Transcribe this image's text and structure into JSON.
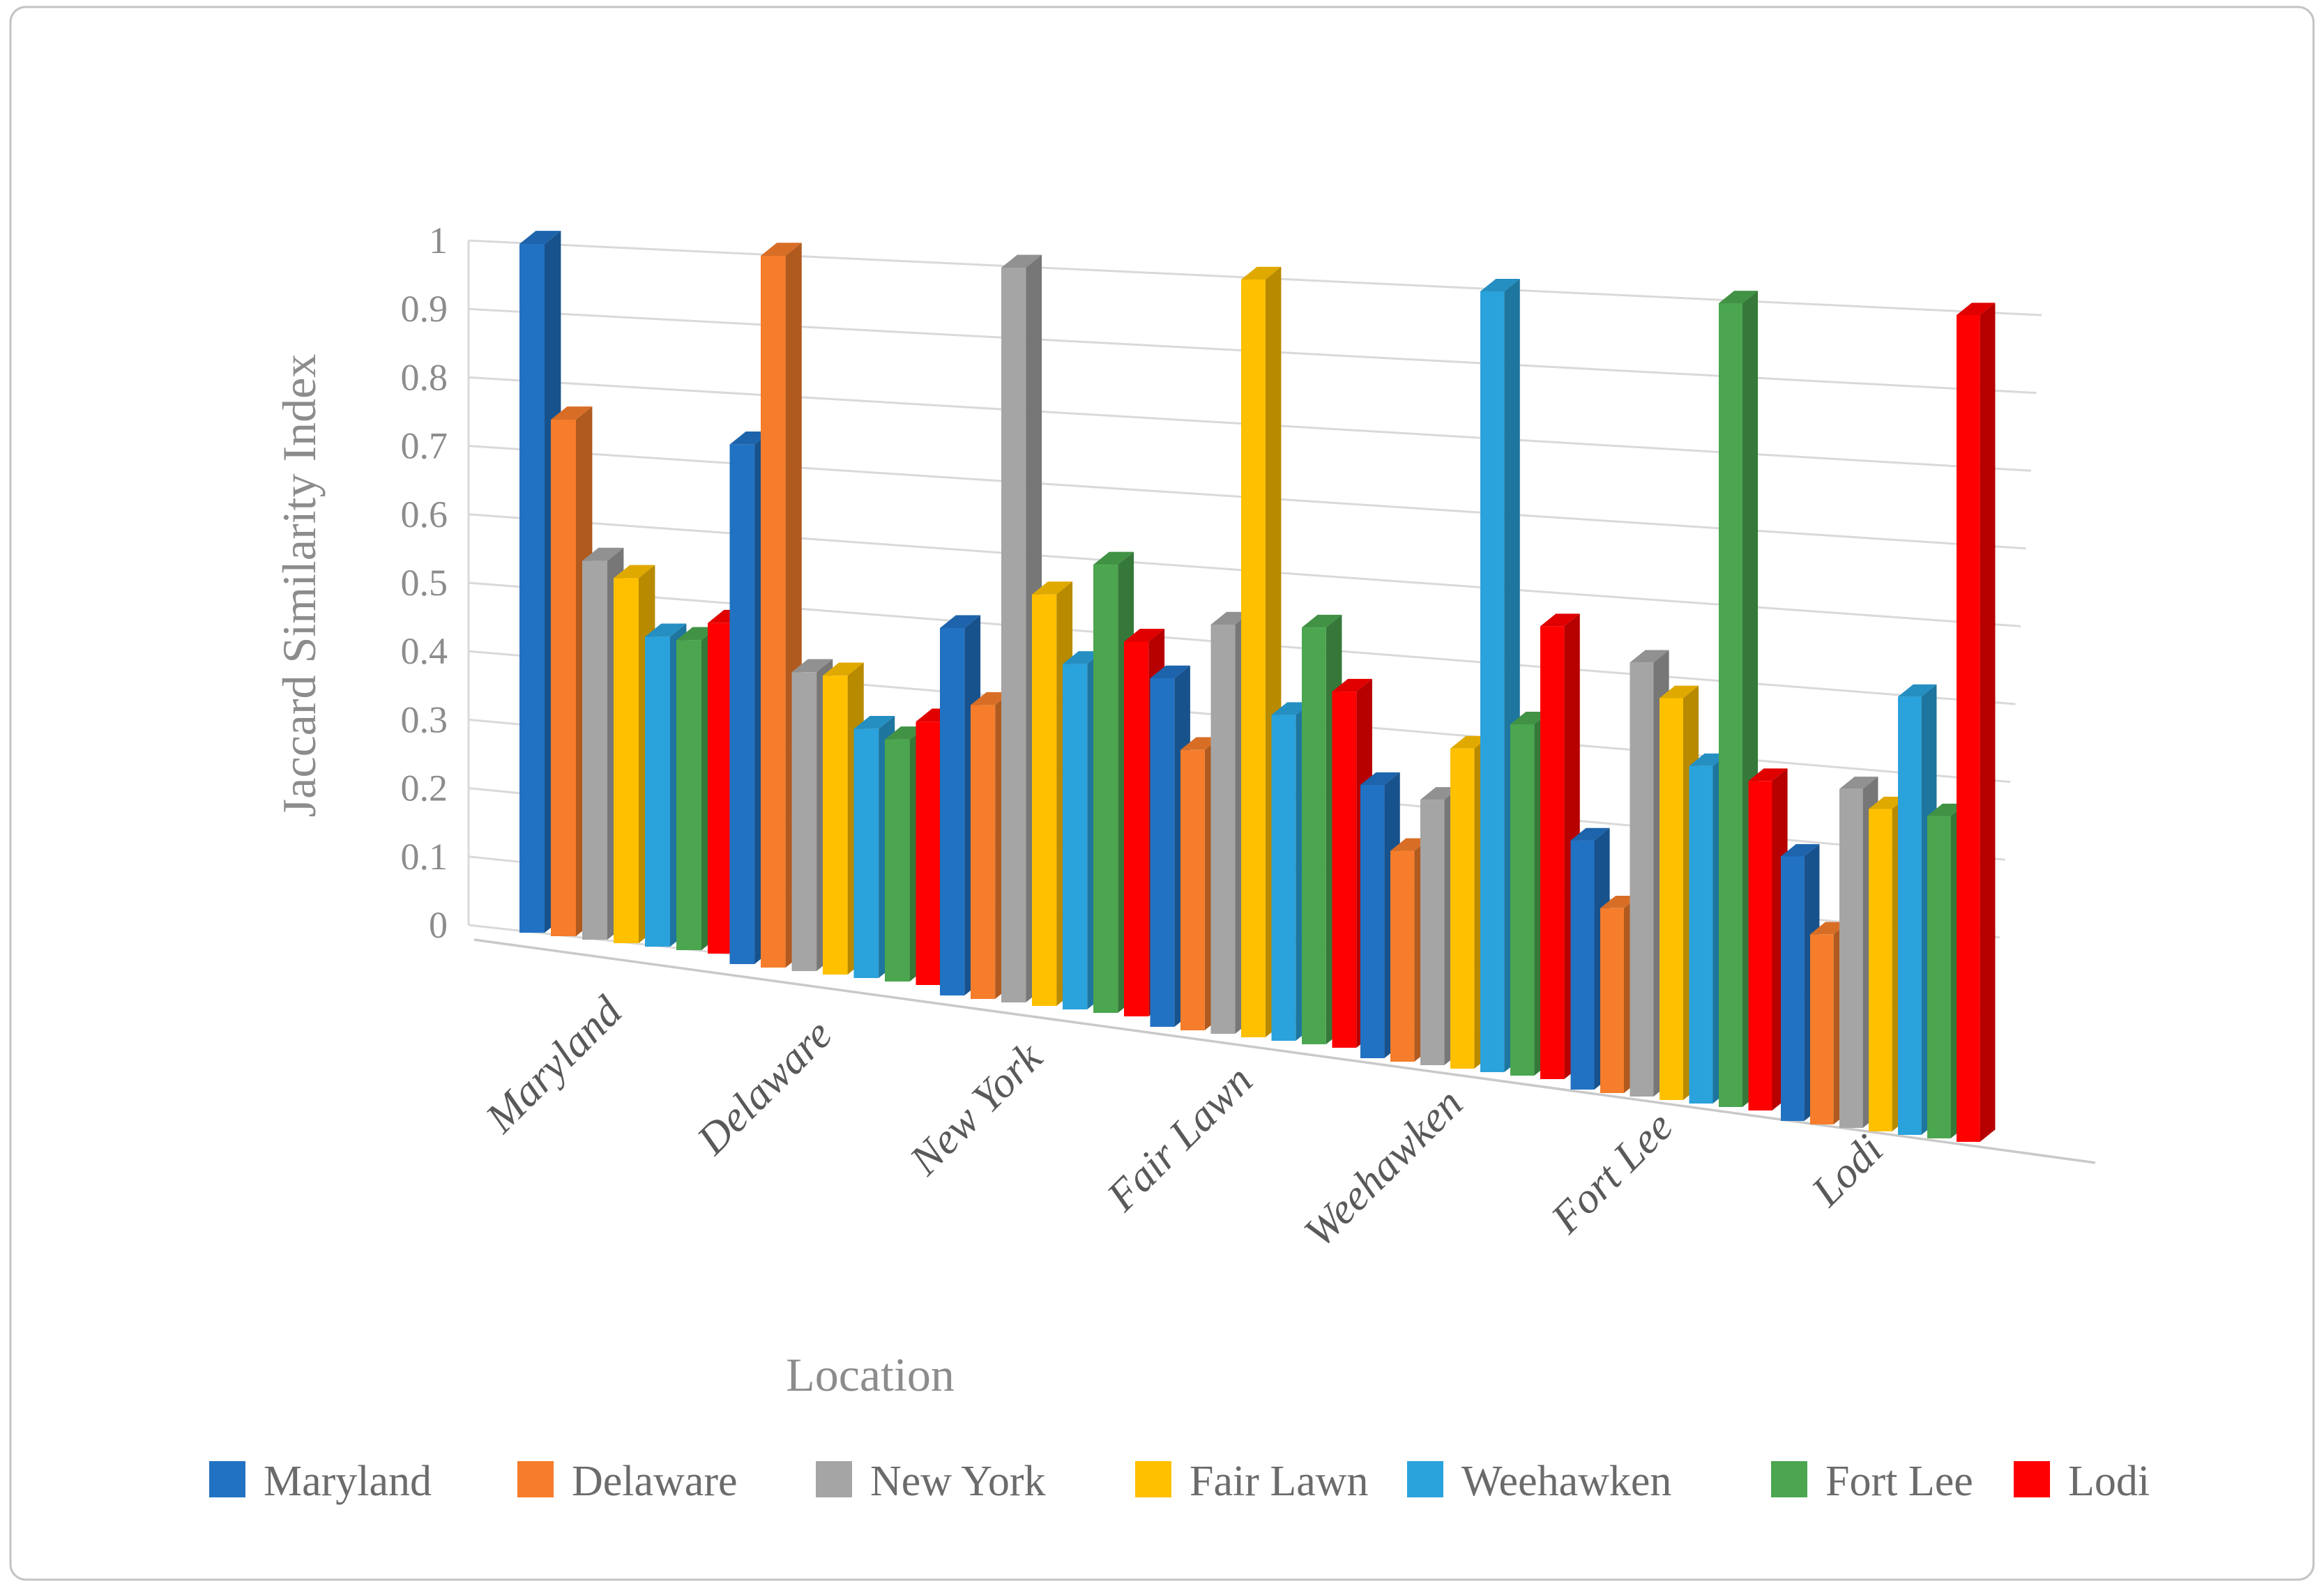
{
  "figure": {
    "background": "#ffffff",
    "border_color": "#c3c3c3"
  },
  "colors": {
    "grid": "#d9d9d9",
    "floor_edge": "#c9c9c9",
    "axis_text": "#8c8c8c",
    "category_text": "#595959",
    "legend_text": "#6b6b6b"
  },
  "chart_data": {
    "type": "bar",
    "subtype": "3d-clustered-column",
    "title": "",
    "xlabel": "Location",
    "ylabel": "Jaccard Similarity Index",
    "ylim": [
      0,
      1
    ],
    "ytick_step": 0.1,
    "ytick_labels": [
      "0",
      "0.1",
      "0.2",
      "0.3",
      "0.4",
      "0.5",
      "0.6",
      "0.7",
      "0.8",
      "0.9",
      "1"
    ],
    "grid": true,
    "legend_position": "bottom",
    "categories": [
      "Maryland",
      "Delaware",
      "New York",
      "Fair Lawn",
      "Weehawken",
      "Fort Lee",
      "Lodi"
    ],
    "series": [
      {
        "name": "Maryland",
        "color": "#2272c3",
        "values": [
          1.0,
          0.73,
          0.5,
          0.46,
          0.35,
          0.31,
          0.32
        ]
      },
      {
        "name": "Delaware",
        "color": "#f57d2b",
        "values": [
          0.75,
          1.0,
          0.4,
          0.37,
          0.27,
          0.23,
          0.23
        ]
      },
      {
        "name": "New York",
        "color": "#a5a5a5",
        "values": [
          0.55,
          0.42,
          1.0,
          0.54,
          0.34,
          0.54,
          0.41
        ]
      },
      {
        "name": "Fair Lawn",
        "color": "#ffc000",
        "values": [
          0.53,
          0.42,
          0.56,
          1.0,
          0.41,
          0.5,
          0.39
        ]
      },
      {
        "name": "Weehawken",
        "color": "#2aa2dc",
        "values": [
          0.45,
          0.35,
          0.47,
          0.43,
          1.0,
          0.42,
          0.53
        ]
      },
      {
        "name": "Fort Lee",
        "color": "#4ba64f",
        "values": [
          0.45,
          0.34,
          0.61,
          0.55,
          0.45,
          1.0,
          0.39
        ]
      },
      {
        "name": "Lodi",
        "color": "#fe0000",
        "values": [
          0.48,
          0.37,
          0.51,
          0.47,
          0.58,
          0.41,
          1.0
        ]
      }
    ]
  }
}
